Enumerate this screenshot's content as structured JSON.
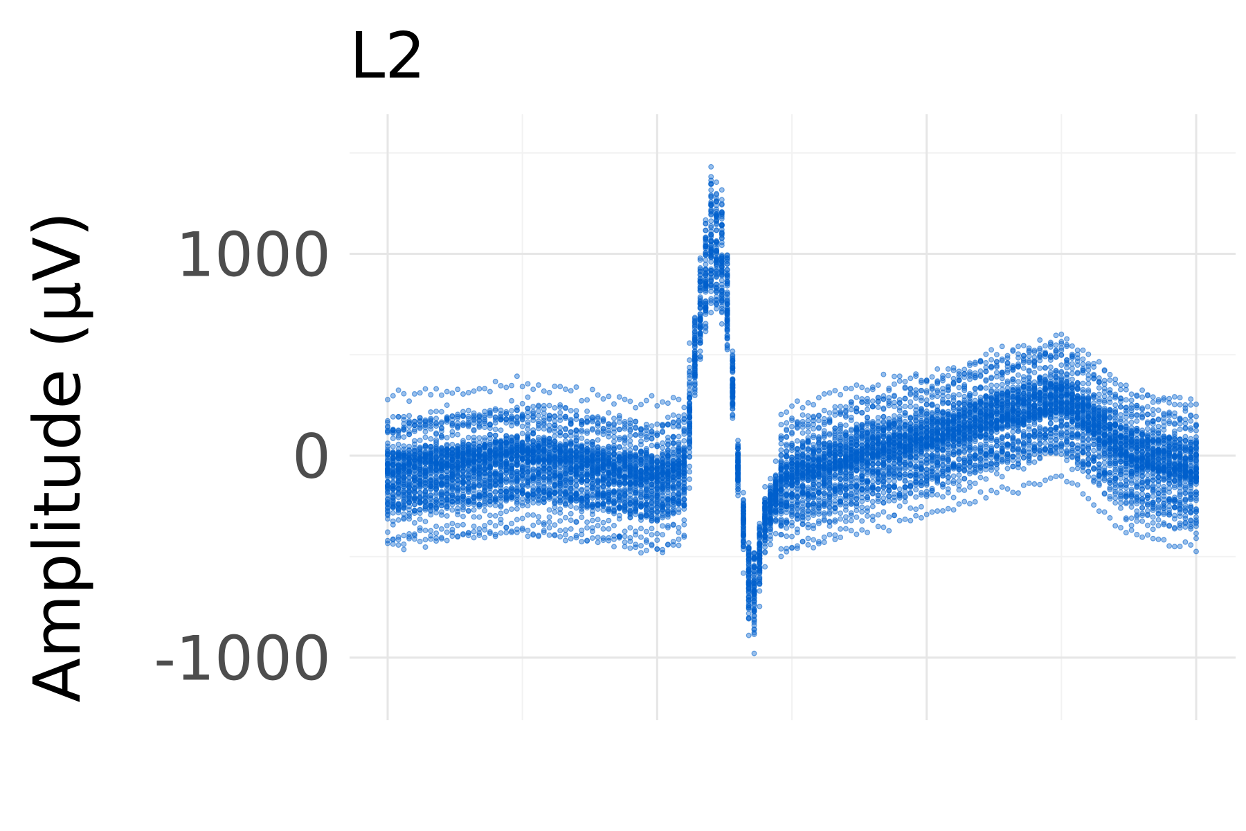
{
  "chart_data": {
    "type": "scatter",
    "title": "L2",
    "xlabel": "",
    "ylabel": "Amplitude (µV)",
    "ylim": [
      -1300,
      1550
    ],
    "xlim": [
      0,
      1.2
    ],
    "y_ticks": [
      -1000,
      0,
      1000
    ],
    "y_tick_labels": [
      "-1000",
      "0",
      "1000"
    ],
    "x_ticks_major": [
      0,
      0.4,
      0.8,
      1.2
    ],
    "x_ticks_minor": [
      0.2,
      0.6,
      1.0
    ],
    "grid": true,
    "point_color": "#0060cc",
    "point_opacity": 0.4,
    "description_of_series": "ECG beats of lead L2 overlaid; each beat is a series of points",
    "mean_waveform": {
      "x": [
        0,
        0.1,
        0.2,
        0.3,
        0.4,
        0.44,
        0.46,
        0.48,
        0.5,
        0.52,
        0.54,
        0.56,
        0.58,
        0.6,
        0.65,
        0.7,
        0.8,
        0.9,
        1.0,
        1.1,
        1.2
      ],
      "y": [
        -80,
        -50,
        -10,
        -60,
        -120,
        -60,
        600,
        1000,
        900,
        -50,
        -700,
        -300,
        -150,
        -100,
        -60,
        0,
        80,
        200,
        300,
        0,
        -80
      ]
    },
    "spread": {
      "upper_baseline": 350,
      "lower_baseline": -450,
      "peak_max": 1550,
      "trough_min": -1150
    }
  }
}
